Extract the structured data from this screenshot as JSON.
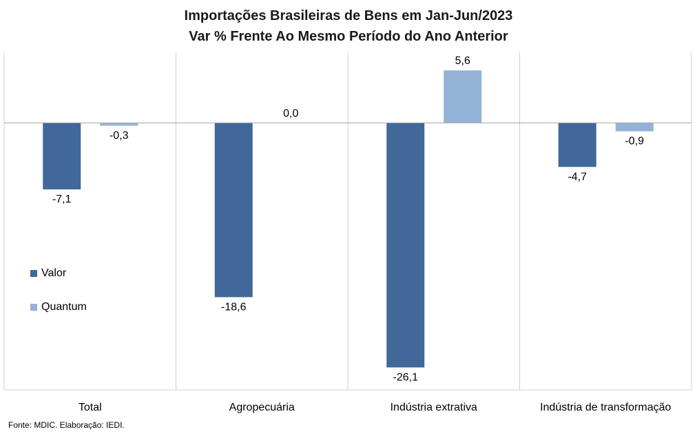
{
  "chart_data": {
    "type": "bar",
    "title": "Importações Brasileiras de Bens em Jan-Jun/2023",
    "subtitle": "Var % Frente Ao Mesmo Período do Ano Anterior",
    "categories": [
      "Total",
      "Agropecuária",
      "Indústria extrativa",
      "Indústria de transformação"
    ],
    "series": [
      {
        "name": "Valor",
        "values": [
          -7.1,
          -18.6,
          -26.1,
          -4.7
        ],
        "labels": [
          "-7,1",
          "-18,6",
          "-26,1",
          "-4,7"
        ],
        "color": "#416899"
      },
      {
        "name": "Quantum",
        "values": [
          -0.3,
          0.0,
          5.6,
          -0.9
        ],
        "labels": [
          "-0,3",
          "0,0",
          "5,6",
          "-0,9"
        ],
        "color": "#95b3d7"
      }
    ],
    "ylim": [
      -28.5,
      7.6
    ],
    "grid": false,
    "legend_position": "left"
  },
  "source": "Fonte: MDIC. Elaboração: IEDI.",
  "colors": {
    "axis": "#a6a6a6",
    "divider": "#d0d0d0"
  }
}
